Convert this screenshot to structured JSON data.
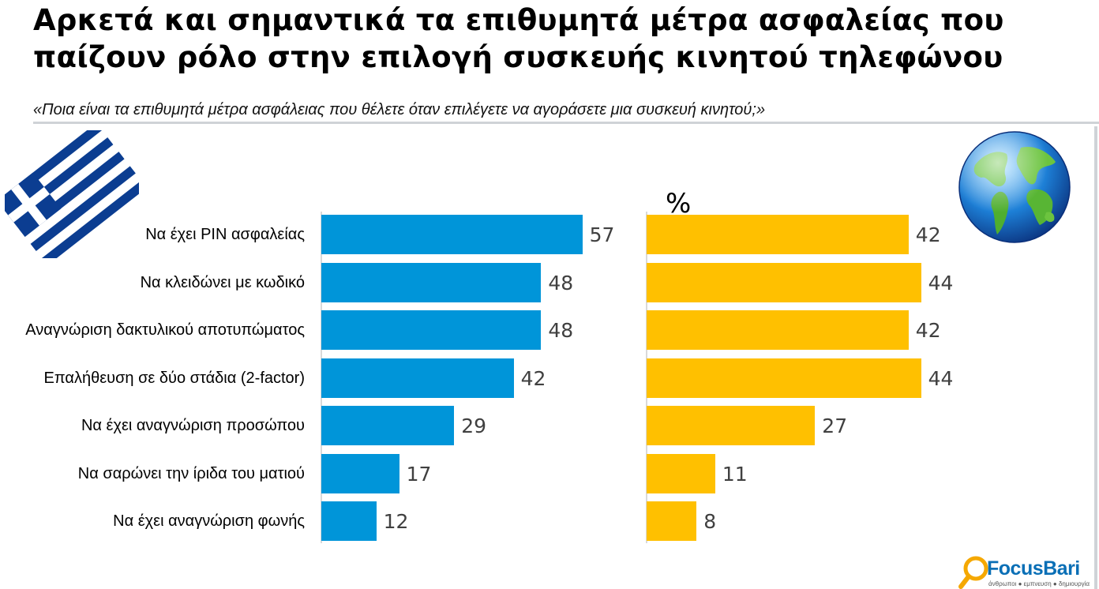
{
  "header": {
    "title": "Αρκετά και σημαντικά τα επιθυμητά μέτρα ασφαλείας που παίζουν ρόλο στην επιλογή συσκευής κινητού τηλεφώνου",
    "subtitle": "«Ποια είναι τα επιθυμητά μέτρα ασφάλειας που θέλετε όταν επιλέγετε να αγοράσετε μια συσκευή κινητού;»"
  },
  "icons": {
    "left": "greek-flag-icon",
    "right": "globe-icon"
  },
  "logo": {
    "name": "FocusBari",
    "tagline": "άνθρωποι ● εμπνευση ● δημιουργία"
  },
  "chart_data": {
    "type": "bar",
    "orientation": "horizontal",
    "unit_label": "%",
    "categories": [
      "Να έχει PIN ασφαλείας",
      "Να κλειδώνει με κωδικό",
      "Αναγνώριση δακτυλικού αποτυπώματος",
      "Επαλήθευση σε δύο στάδια (2-factor)",
      "Να έχει αναγνώριση προσώπου",
      "Να σαρώνει την ίριδα του ματιού",
      "Να έχει αναγνώριση φωνής"
    ],
    "series": [
      {
        "values": [
          57,
          48,
          48,
          42,
          29,
          17,
          12
        ],
        "color": "#0095d9"
      },
      {
        "values": [
          42,
          44,
          42,
          44,
          27,
          11,
          8
        ],
        "color": "#ffc000"
      }
    ],
    "xlim": [
      0,
      100
    ],
    "grid": false,
    "legend": "none"
  }
}
